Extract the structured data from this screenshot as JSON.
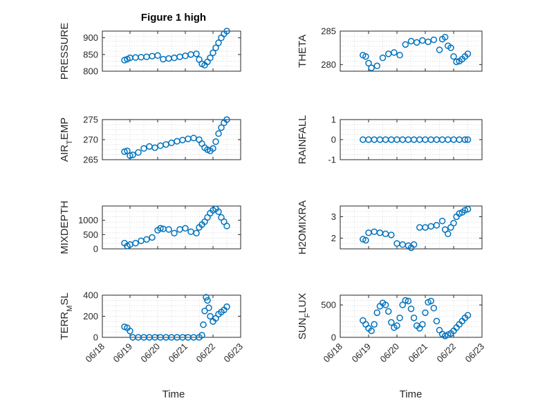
{
  "figure": {
    "title": "Figure 1 high",
    "marker_color": "#0072BD"
  },
  "chart_data": [
    {
      "type": "scatter",
      "ylabel": "PRESSURE",
      "ylabel_sub": "",
      "ylim": [
        800,
        920
      ],
      "yticks": [
        800,
        850,
        900
      ],
      "xlim": [
        0,
        5
      ],
      "x": [
        0.8,
        0.9,
        1.0,
        1.2,
        1.4,
        1.6,
        1.8,
        2.0,
        2.2,
        2.4,
        2.6,
        2.8,
        3.0,
        3.2,
        3.4,
        3.5,
        3.6,
        3.7,
        3.8,
        3.9,
        4.0,
        4.1,
        4.2,
        4.3,
        4.4,
        4.5
      ],
      "y": [
        833,
        836,
        840,
        841,
        842,
        843,
        845,
        847,
        836,
        838,
        840,
        843,
        846,
        850,
        852,
        835,
        822,
        818,
        828,
        840,
        855,
        870,
        885,
        900,
        912,
        920
      ],
      "show_xticks": false
    },
    {
      "type": "scatter",
      "ylabel": "THETA",
      "ylabel_sub": "",
      "ylim": [
        279,
        285
      ],
      "yticks": [
        280,
        285
      ],
      "xlim": [
        0,
        5
      ],
      "x": [
        0.8,
        0.9,
        1.0,
        1.1,
        1.3,
        1.5,
        1.7,
        1.9,
        2.1,
        2.3,
        2.5,
        2.7,
        2.9,
        3.1,
        3.3,
        3.5,
        3.6,
        3.7,
        3.8,
        3.9,
        4.0,
        4.1,
        4.2,
        4.3,
        4.4,
        4.5
      ],
      "y": [
        281.4,
        281.2,
        280.2,
        279.5,
        279.8,
        281.0,
        281.6,
        281.8,
        281.4,
        283.0,
        283.5,
        283.3,
        283.6,
        283.4,
        283.7,
        282.2,
        283.8,
        284.1,
        282.8,
        282.5,
        281.2,
        280.4,
        280.5,
        280.8,
        281.2,
        281.6
      ],
      "show_xticks": false
    },
    {
      "type": "scatter",
      "ylabel": "AIR",
      "ylabel_sub": "T",
      "ylabel_after": "EMP",
      "ylim": [
        265,
        275
      ],
      "yticks": [
        265,
        270,
        275
      ],
      "xlim": [
        0,
        5
      ],
      "x": [
        0.8,
        0.9,
        1.0,
        1.1,
        1.3,
        1.5,
        1.7,
        1.9,
        2.1,
        2.3,
        2.5,
        2.7,
        2.9,
        3.1,
        3.3,
        3.5,
        3.6,
        3.7,
        3.8,
        3.9,
        4.0,
        4.1,
        4.2,
        4.3,
        4.4,
        4.5
      ],
      "y": [
        267.0,
        267.2,
        266.0,
        266.2,
        266.8,
        267.8,
        268.3,
        268.0,
        268.5,
        268.8,
        269.2,
        269.6,
        269.9,
        270.2,
        270.4,
        270.0,
        269.0,
        268.0,
        267.5,
        267.2,
        267.8,
        269.5,
        271.5,
        273.0,
        274.2,
        275.0
      ],
      "show_xticks": false
    },
    {
      "type": "scatter",
      "ylabel": "RAINFALL",
      "ylabel_sub": "",
      "ylim": [
        -1,
        1
      ],
      "yticks": [
        -1,
        0,
        1
      ],
      "xlim": [
        0,
        5
      ],
      "x": [
        0.8,
        1.0,
        1.2,
        1.4,
        1.6,
        1.8,
        2.0,
        2.2,
        2.4,
        2.6,
        2.8,
        3.0,
        3.2,
        3.4,
        3.6,
        3.8,
        4.0,
        4.2,
        4.4,
        4.5
      ],
      "y": [
        0,
        0,
        0,
        0,
        0,
        0,
        0,
        0,
        0,
        0,
        0,
        0,
        0,
        0,
        0,
        0,
        0,
        0,
        0,
        0
      ],
      "show_xticks": false
    },
    {
      "type": "scatter",
      "ylabel": "MIXDEPTH",
      "ylabel_sub": "",
      "ylim": [
        0,
        1500
      ],
      "yticks": [
        0,
        500,
        1000
      ],
      "xlim": [
        0,
        5
      ],
      "x": [
        0.8,
        0.9,
        1.0,
        1.2,
        1.4,
        1.6,
        1.8,
        2.0,
        2.1,
        2.2,
        2.4,
        2.6,
        2.8,
        3.0,
        3.2,
        3.4,
        3.5,
        3.6,
        3.7,
        3.8,
        3.9,
        4.0,
        4.1,
        4.2,
        4.3,
        4.4,
        4.5
      ],
      "y": [
        200,
        100,
        150,
        200,
        280,
        330,
        400,
        650,
        720,
        700,
        680,
        550,
        680,
        720,
        600,
        550,
        750,
        850,
        950,
        1100,
        1250,
        1350,
        1400,
        1300,
        1100,
        950,
        800
      ],
      "show_xticks": false
    },
    {
      "type": "scatter",
      "ylabel": "H2OMIXRA",
      "ylabel_sub": "",
      "ylim": [
        1.5,
        3.5
      ],
      "yticks": [
        2,
        3
      ],
      "xlim": [
        0,
        5
      ],
      "x": [
        0.8,
        0.9,
        1.0,
        1.2,
        1.4,
        1.6,
        1.8,
        2.0,
        2.2,
        2.4,
        2.5,
        2.6,
        2.8,
        3.0,
        3.2,
        3.4,
        3.6,
        3.7,
        3.8,
        3.9,
        4.0,
        4.1,
        4.2,
        4.3,
        4.4,
        4.5
      ],
      "y": [
        1.95,
        1.9,
        2.25,
        2.3,
        2.25,
        2.2,
        2.15,
        1.75,
        1.7,
        1.65,
        1.55,
        1.7,
        2.5,
        2.5,
        2.55,
        2.6,
        2.8,
        2.4,
        2.2,
        2.5,
        2.7,
        3.0,
        3.15,
        3.2,
        3.3,
        3.35
      ],
      "show_xticks": false
    },
    {
      "type": "scatter",
      "ylabel": "TERR",
      "ylabel_sub": "M",
      "ylabel_after": "SL",
      "ylim": [
        0,
        400
      ],
      "yticks": [
        0,
        200,
        400
      ],
      "xlim": [
        0,
        5
      ],
      "x": [
        0.8,
        0.9,
        1.0,
        1.1,
        1.3,
        1.5,
        1.7,
        1.9,
        2.1,
        2.3,
        2.5,
        2.7,
        2.9,
        3.1,
        3.3,
        3.5,
        3.6,
        3.65,
        3.7,
        3.75,
        3.8,
        3.85,
        3.9,
        4.0,
        4.1,
        4.2,
        4.3,
        4.4,
        4.5
      ],
      "y": [
        100,
        90,
        60,
        0,
        0,
        0,
        0,
        0,
        0,
        0,
        0,
        0,
        0,
        0,
        0,
        0,
        20,
        120,
        250,
        380,
        350,
        280,
        200,
        150,
        180,
        220,
        240,
        260,
        290
      ],
      "show_xticks": true
    },
    {
      "type": "scatter",
      "ylabel": "SUN",
      "ylabel_sub": "F",
      "ylabel_after": "LUX",
      "ylim": [
        0,
        650
      ],
      "yticks": [
        0,
        500
      ],
      "xlim": [
        0,
        5
      ],
      "x": [
        0.8,
        0.9,
        1.0,
        1.1,
        1.2,
        1.3,
        1.4,
        1.5,
        1.6,
        1.7,
        1.8,
        1.9,
        2.0,
        2.1,
        2.2,
        2.3,
        2.4,
        2.5,
        2.6,
        2.7,
        2.8,
        2.9,
        3.0,
        3.1,
        3.2,
        3.3,
        3.4,
        3.5,
        3.6,
        3.7,
        3.8,
        3.9,
        4.0,
        4.1,
        4.2,
        4.3,
        4.4,
        4.5
      ],
      "y": [
        260,
        200,
        140,
        100,
        200,
        380,
        480,
        530,
        500,
        400,
        230,
        150,
        180,
        300,
        500,
        570,
        560,
        440,
        300,
        180,
        140,
        200,
        380,
        540,
        560,
        450,
        250,
        110,
        50,
        20,
        40,
        60,
        100,
        150,
        200,
        250,
        300,
        340
      ],
      "show_xticks": true
    }
  ],
  "x_axis": {
    "tick_labels": [
      "06/18",
      "06/19",
      "06/20",
      "06/21",
      "06/22",
      "06/23"
    ],
    "label": "Time"
  }
}
